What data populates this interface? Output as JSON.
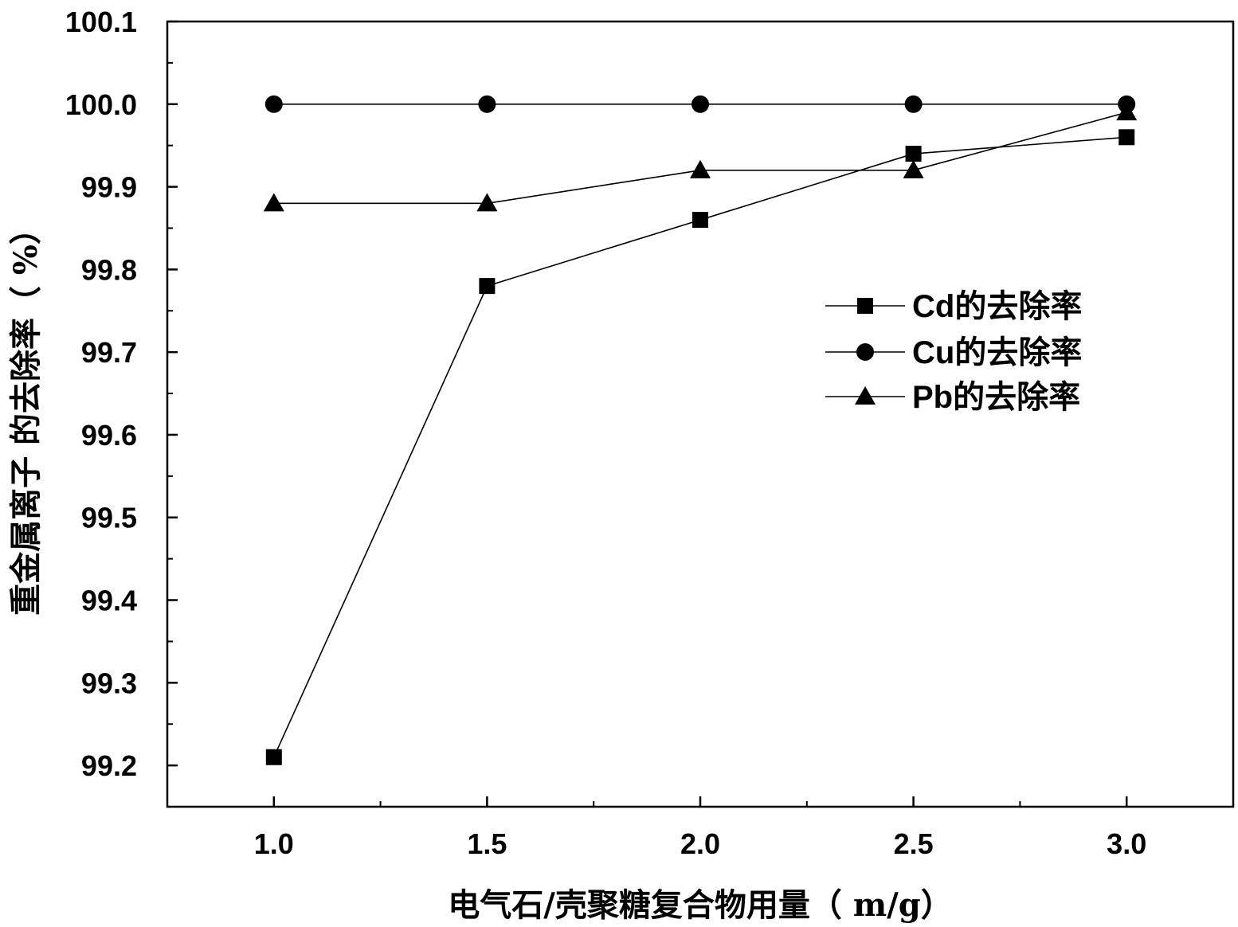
{
  "chart_data": {
    "type": "line",
    "title": "",
    "xlabel": "电气石/壳聚糖复合物用量（ m/g）",
    "ylabel": "重金属离子 的去除率（ %）",
    "x": [
      1.0,
      1.5,
      2.0,
      2.5,
      3.0
    ],
    "xticks": [
      "1.0",
      "1.5",
      "2.0",
      "2.5",
      "3.0"
    ],
    "yticks": [
      "99.2",
      "99.3",
      "99.4",
      "99.5",
      "99.6",
      "99.7",
      "99.8",
      "99.9",
      "100.0",
      "100.1"
    ],
    "xlim": [
      0.75,
      3.25
    ],
    "ylim": [
      99.15,
      100.1
    ],
    "grid": false,
    "legend_position": "right",
    "series": [
      {
        "name": "Cd的去除率",
        "marker": "square",
        "values": [
          99.21,
          99.78,
          99.86,
          99.94,
          99.96
        ]
      },
      {
        "name": "Cu的去除率",
        "marker": "circle",
        "values": [
          100.0,
          100.0,
          100.0,
          100.0,
          100.0
        ]
      },
      {
        "name": "Pb的去除率",
        "marker": "triangle",
        "values": [
          99.88,
          99.88,
          99.92,
          99.92,
          99.99
        ]
      }
    ]
  }
}
